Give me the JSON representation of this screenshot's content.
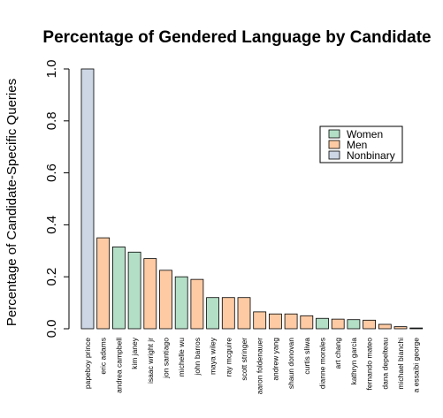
{
  "chart_data": {
    "type": "bar",
    "title": "Percentage of Gendered Language by Candidate",
    "xlabel": "",
    "ylabel": "Percentage of Candidate-Specific Queries",
    "ylim": [
      0,
      1.0
    ],
    "yticks": [
      "0.0",
      "0.2",
      "0.4",
      "0.6",
      "0.8",
      "1.0"
    ],
    "categories": [
      "papeboy prince",
      "eric adams",
      "andrea campbell",
      "kim janey",
      "isaac wright jr",
      "jon santiago",
      "michelle wu",
      "john barros",
      "maya wiley",
      "ray mcguire",
      "scott stringer",
      "aaron foldenauer",
      "andrew yang",
      "shaun donovan",
      "curtis sliwa",
      "dianne morales",
      "art chang",
      "kathryn garcia",
      "fernando mateo",
      "dana depelteau",
      "michael bianchi",
      "a essaibi george"
    ],
    "values": [
      1.0,
      0.35,
      0.315,
      0.295,
      0.27,
      0.225,
      0.2,
      0.19,
      0.12,
      0.12,
      0.12,
      0.065,
      0.057,
      0.057,
      0.05,
      0.04,
      0.037,
      0.035,
      0.033,
      0.017,
      0.008,
      0.003
    ],
    "genders": [
      "Nonbinary",
      "Men",
      "Women",
      "Women",
      "Men",
      "Men",
      "Women",
      "Men",
      "Women",
      "Men",
      "Men",
      "Men",
      "Men",
      "Men",
      "Men",
      "Women",
      "Men",
      "Women",
      "Men",
      "Men",
      "Men",
      "Women"
    ],
    "legend": {
      "position": "right",
      "entries": [
        {
          "label": "Women",
          "color": "#b3dfc6"
        },
        {
          "label": "Men",
          "color": "#fdcaa4"
        },
        {
          "label": "Nonbinary",
          "color": "#ccd6e4"
        }
      ]
    },
    "colors": {
      "Women": "#b3dfc6",
      "Men": "#fdcaa4",
      "Nonbinary": "#ccd6e4"
    }
  }
}
